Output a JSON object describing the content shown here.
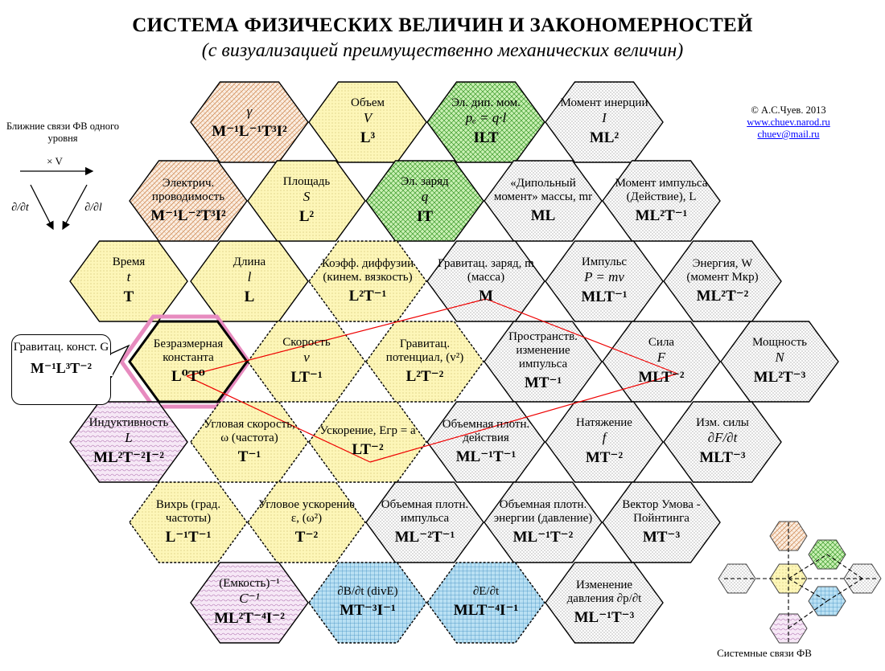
{
  "title": "СИСТЕМА ФИЗИЧЕСКИХ ВЕЛИЧИН И ЗАКОНОМЕРНОСТЕЙ",
  "subtitle": "(с визуализацией преимущественно механических величин)",
  "credits": {
    "author": "© А.С.Чуев. 2013",
    "site": "www.chuev.narod.ru",
    "email": "chuev@mail.ru"
  },
  "legend_top": {
    "caption": "Ближние связи  ФВ одного уровня",
    "times_v": "× V",
    "d_dt": "∂/∂t",
    "d_dl": "∂/∂l"
  },
  "legend_bottom": "Системные связи  ФВ",
  "callout": {
    "name": "Гравитац. конст. G",
    "dim": "M⁻¹L³T⁻²"
  },
  "colors": {
    "orange": "#e0b08a",
    "yellow": "#fdf6b8",
    "green": "#b5eaa0",
    "pink": "#ecd7ec",
    "blue": "#a9d6ee",
    "gray": "#ffffff"
  },
  "hexagons": [
    {
      "id": "gamma",
      "name": "",
      "sym": "γ",
      "dim": "M⁻¹L⁻¹T³I²",
      "fill": "orange"
    },
    {
      "id": "volume",
      "name": "Объем",
      "sym": "V",
      "dim": "L³",
      "fill": "yellow"
    },
    {
      "id": "el-dip-mom",
      "name": "Эл. дип. мом.",
      "sym": "pₑ = q·l",
      "dim": "ILT",
      "fill": "green"
    },
    {
      "id": "moment-inertia",
      "name": "Момент инерции",
      "sym": "I",
      "dim": "ML²",
      "fill": "gray"
    },
    {
      "id": "conductivity",
      "name": "Электрич. проводимость",
      "sym": "",
      "dim": "M⁻¹L⁻²T³I²",
      "fill": "orange"
    },
    {
      "id": "area",
      "name": "Площадь",
      "sym": "S",
      "dim": "L²",
      "fill": "yellow"
    },
    {
      "id": "el-charge",
      "name": "Эл. заряд",
      "sym": "q",
      "dim": "IT",
      "fill": "green"
    },
    {
      "id": "dipole-moment-mass",
      "name": "«Дипольный момент» массы, mr",
      "sym": "",
      "dim": "ML",
      "fill": "gray"
    },
    {
      "id": "angular-momentum",
      "name": "Момент импульса (Действие), L",
      "sym": "",
      "dim": "ML²T⁻¹",
      "fill": "gray"
    },
    {
      "id": "time",
      "name": "Время",
      "sym": "t",
      "dim": "T",
      "fill": "yellow"
    },
    {
      "id": "length",
      "name": "Длина",
      "sym": "l",
      "dim": "L",
      "fill": "yellow"
    },
    {
      "id": "diffusion",
      "name": "Коэфф. диффузии (кинем. вязкость)",
      "sym": "",
      "dim": "L²T⁻¹",
      "fill": "yellow"
    },
    {
      "id": "grav-charge",
      "name": "Гравитац. заряд, m (масса)",
      "sym": "",
      "dim": "M",
      "fill": "gray"
    },
    {
      "id": "momentum",
      "name": "Импульс",
      "sym": "P = mv",
      "dim": "MLT⁻¹",
      "fill": "gray"
    },
    {
      "id": "energy",
      "name": "Энергия, W (момент Мкр)",
      "sym": "",
      "dim": "ML²T⁻²",
      "fill": "gray"
    },
    {
      "id": "dimensionless",
      "name": "Безразмерная константа",
      "sym": "",
      "dim": "L⁰T⁰",
      "fill": "yellow"
    },
    {
      "id": "speed",
      "name": "Скорость",
      "sym": "v",
      "dim": "LT⁻¹",
      "fill": "yellow"
    },
    {
      "id": "grav-potential",
      "name": "Гравитац. потенциал, (v²)",
      "sym": "",
      "dim": "L²T⁻²",
      "fill": "yellow"
    },
    {
      "id": "spatial-momentum",
      "name": "Пространств. изменение импульса",
      "sym": "",
      "dim": "MT⁻¹",
      "fill": "gray"
    },
    {
      "id": "force",
      "name": "Сила",
      "sym": "F",
      "dim": "MLT⁻²",
      "fill": "gray"
    },
    {
      "id": "power",
      "name": "Мощность",
      "sym": "N",
      "dim": "ML²T⁻³",
      "fill": "gray"
    },
    {
      "id": "inductance",
      "name": "Индуктивность",
      "sym": "L",
      "dim": "ML²T⁻²I⁻²",
      "fill": "pink"
    },
    {
      "id": "angular-speed",
      "name": "Угловая скорость, ω (частота)",
      "sym": "",
      "dim": "T⁻¹",
      "fill": "yellow"
    },
    {
      "id": "acceleration",
      "name": "Ускорение, Eгр = a",
      "sym": "",
      "dim": "LT⁻²",
      "fill": "yellow"
    },
    {
      "id": "action-density",
      "name": "Объемная плотн. действия",
      "sym": "",
      "dim": "ML⁻¹T⁻¹",
      "fill": "gray"
    },
    {
      "id": "tension",
      "name": "Натяжение",
      "sym": "f",
      "dim": "MT⁻²",
      "fill": "gray"
    },
    {
      "id": "force-change",
      "name": "Изм. силы",
      "sym": "∂F/∂t",
      "dim": "MLT⁻³",
      "fill": "gray"
    },
    {
      "id": "vortex",
      "name": "Вихрь (град. частоты)",
      "sym": "",
      "dim": "L⁻¹T⁻¹",
      "fill": "yellow"
    },
    {
      "id": "angular-accel",
      "name": "Угловое ускорение ε, (ω²)",
      "sym": "",
      "dim": "T⁻²",
      "fill": "yellow"
    },
    {
      "id": "momentum-density",
      "name": "Объемная плотн. импульса",
      "sym": "",
      "dim": "ML⁻²T⁻¹",
      "fill": "gray"
    },
    {
      "id": "energy-density",
      "name": "Объемная плотн. энергии (давление)",
      "sym": "",
      "dim": "ML⁻¹T⁻²",
      "fill": "gray"
    },
    {
      "id": "umov-poynting",
      "name": "Вектор Умова - Пойнтинга",
      "sym": "",
      "dim": "MT⁻³",
      "fill": "gray"
    },
    {
      "id": "capacitance",
      "name": "(Емкость)⁻¹",
      "sym": "C⁻¹",
      "dim": "ML²T⁻⁴I⁻²",
      "fill": "pink"
    },
    {
      "id": "dB-dt",
      "name": "∂B/∂t (divE)",
      "sym": "",
      "dim": "MT⁻³I⁻¹",
      "fill": "blue"
    },
    {
      "id": "dE-dt",
      "name": "∂E/∂t",
      "sym": "",
      "dim": "MLT⁻⁴I⁻¹",
      "fill": "blue"
    },
    {
      "id": "pressure-change",
      "name": "Изменение давления ∂p/∂t",
      "sym": "",
      "dim": "ML⁻¹T⁻³",
      "fill": "gray"
    }
  ]
}
